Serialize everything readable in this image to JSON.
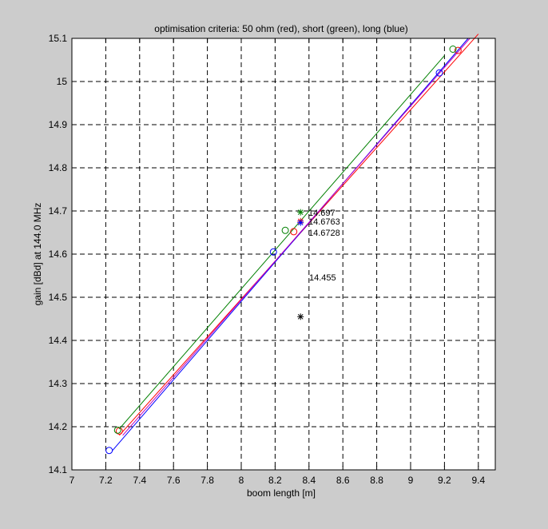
{
  "chart_data": {
    "type": "scatter",
    "title": "optimisation criteria: 50 ohm (red), short (green), long (blue)",
    "xlabel": "boom length [m]",
    "ylabel": "gain [dBd] at 144.0 MHz",
    "xlim": [
      7,
      9.5
    ],
    "ylim": [
      14.1,
      15.1
    ],
    "xticks": [
      "7",
      "7.2",
      "7.4",
      "7.6",
      "7.8",
      "8",
      "8.2",
      "8.4",
      "8.6",
      "8.8",
      "9",
      "9.2",
      "9.4"
    ],
    "yticks": [
      "14.1",
      "14.2",
      "14.3",
      "14.4",
      "14.5",
      "14.6",
      "14.7",
      "14.8",
      "14.9",
      "15",
      "15.1"
    ],
    "grid": true,
    "lines": [
      {
        "color": "#ff0000",
        "x": [
          7.28,
          9.4
        ],
        "y": [
          14.18,
          15.11
        ]
      },
      {
        "color": "#008000",
        "x": [
          7.28,
          9.2
        ],
        "y": [
          14.195,
          15.06
        ]
      },
      {
        "color": "#0000ff",
        "x": [
          7.24,
          9.34
        ],
        "y": [
          14.145,
          15.1
        ]
      },
      {
        "color": "#bf00bf",
        "x": [
          7.3,
          9.35
        ],
        "y": [
          14.18,
          15.1
        ]
      }
    ],
    "circles": [
      {
        "color": "#ff0000",
        "x": 7.28,
        "y": 14.19
      },
      {
        "color": "#ff0000",
        "x": 8.31,
        "y": 14.652
      },
      {
        "color": "#ff0000",
        "x": 9.28,
        "y": 15.072
      },
      {
        "color": "#008000",
        "x": 7.27,
        "y": 14.192
      },
      {
        "color": "#008000",
        "x": 8.26,
        "y": 14.655
      },
      {
        "color": "#008000",
        "x": 9.25,
        "y": 15.075
      },
      {
        "color": "#0000ff",
        "x": 7.22,
        "y": 14.145
      },
      {
        "color": "#0000ff",
        "x": 8.19,
        "y": 14.605
      },
      {
        "color": "#0000ff",
        "x": 9.17,
        "y": 15.02
      }
    ],
    "stars": [
      {
        "color": "#008000",
        "x": 8.35,
        "y": 14.697
      },
      {
        "color": "#ff0000",
        "x": 8.35,
        "y": 14.6763
      },
      {
        "color": "#0000ff",
        "x": 8.35,
        "y": 14.6728
      },
      {
        "color": "#000000",
        "x": 8.35,
        "y": 14.455
      }
    ],
    "annotations": [
      "14.697",
      "14.6763",
      "14.6728",
      "14.455"
    ]
  }
}
